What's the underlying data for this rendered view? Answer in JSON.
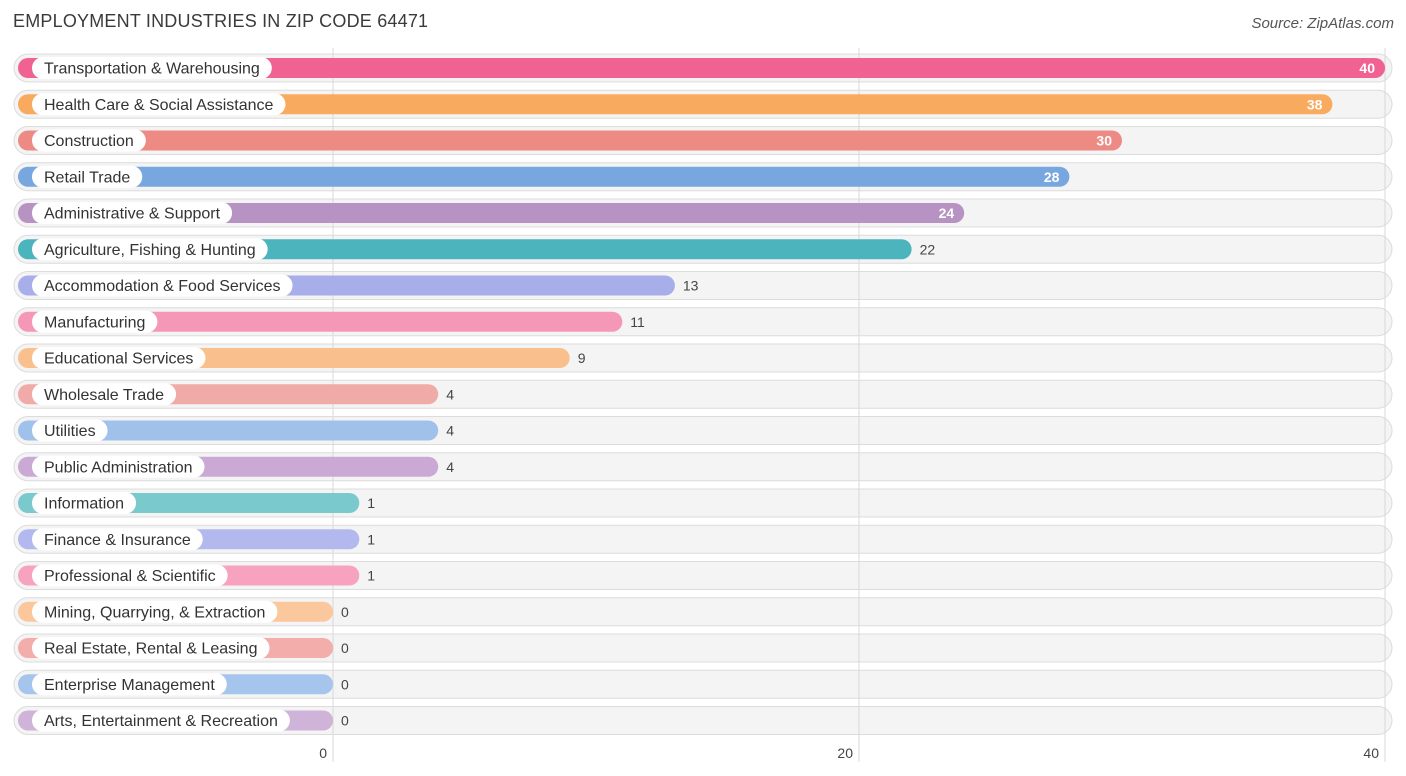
{
  "header": {
    "title": "EMPLOYMENT INDUSTRIES IN ZIP CODE 64471",
    "source": "Source: ZipAtlas.com"
  },
  "chart_data": {
    "type": "bar",
    "orientation": "horizontal",
    "title": "EMPLOYMENT INDUSTRIES IN ZIP CODE 64471",
    "xlabel": "",
    "ylabel": "",
    "xlim": [
      0,
      40
    ],
    "ticks": [
      0,
      20,
      40
    ],
    "grid": true,
    "categories": [
      "Transportation & Warehousing",
      "Health Care & Social Assistance",
      "Construction",
      "Retail Trade",
      "Administrative & Support",
      "Agriculture, Fishing & Hunting",
      "Accommodation & Food Services",
      "Manufacturing",
      "Educational Services",
      "Wholesale Trade",
      "Utilities",
      "Public Administration",
      "Information",
      "Finance & Insurance",
      "Professional & Scientific",
      "Mining, Quarrying, & Extraction",
      "Real Estate, Rental & Leasing",
      "Enterprise Management",
      "Arts, Entertainment & Recreation"
    ],
    "values": [
      40,
      38,
      30,
      28,
      24,
      22,
      13,
      11,
      9,
      4,
      4,
      4,
      1,
      1,
      1,
      0,
      0,
      0,
      0
    ],
    "colors": [
      "#f06291",
      "#f8ab5e",
      "#ec8a83",
      "#78a7e0",
      "#b793c3",
      "#4bb4bd",
      "#a8aee9",
      "#f597b6",
      "#f9c08e",
      "#f0aaa8",
      "#9fc1ea",
      "#cba9d5",
      "#7acacd",
      "#b3b9ee",
      "#f7a3c0",
      "#fbc89d",
      "#f3adab",
      "#a6c5ec",
      "#cfb3d8"
    ]
  }
}
